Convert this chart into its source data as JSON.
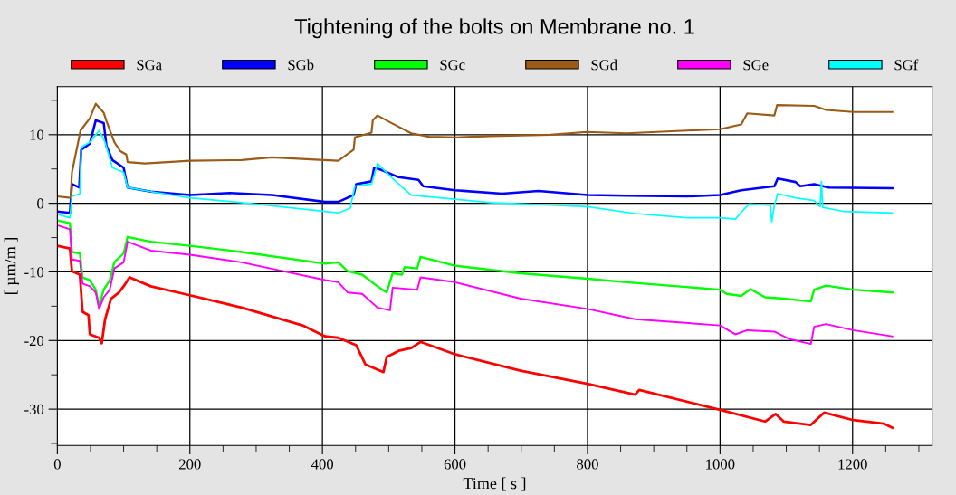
{
  "chart_data": {
    "type": "line",
    "title": "Tightening of the bolts on Membrane no. 1",
    "xlabel": "Time [ s ]",
    "ylabel": "[ µm/m ]",
    "xlim": [
      0,
      1320
    ],
    "ylim": [
      -35.3,
      17
    ],
    "xticks": [
      0,
      {
        "value": 50,
        "label": null
      },
      {
        "value": 100,
        "label": null
      },
      {
        "value": 150,
        "label": null
      },
      200,
      {
        "value": 250,
        "label": null
      },
      {
        "value": 300,
        "label": null
      },
      {
        "value": 350,
        "label": null
      },
      400,
      {
        "value": 450,
        "label": null
      },
      {
        "value": 500,
        "label": null
      },
      {
        "value": 550,
        "label": null
      },
      600,
      {
        "value": 650,
        "label": null
      },
      {
        "value": 700,
        "label": null
      },
      {
        "value": 750,
        "label": null
      },
      800,
      {
        "value": 850,
        "label": null
      },
      {
        "value": 900,
        "label": null
      },
      {
        "value": 950,
        "label": null
      },
      1000,
      {
        "value": 1050,
        "label": null
      },
      {
        "value": 1100,
        "label": null
      },
      {
        "value": 1150,
        "label": null
      },
      1200,
      {
        "value": 1250,
        "label": null
      },
      {
        "value": 1300,
        "label": null
      }
    ],
    "yticks": [
      {
        "value": -35,
        "label": null
      },
      -30,
      {
        "value": -25,
        "label": null
      },
      -20,
      {
        "value": -15,
        "label": null
      },
      -10,
      {
        "value": -5,
        "label": null
      },
      0,
      {
        "value": 5,
        "label": null
      },
      10,
      {
        "value": 15,
        "label": null
      }
    ],
    "grid": true,
    "legend": "top",
    "marker": "none",
    "line_style": "solid",
    "series": [
      {
        "name": "SGa",
        "color": "#ff0000",
        "x": [
          0,
          19,
          22,
          34,
          38,
          47,
          49,
          63,
          67,
          72,
          81,
          93,
          100,
          109,
          141,
          200,
          278,
          370,
          404,
          424,
          451,
          465,
          492,
          497,
          515,
          534,
          548,
          600,
          699,
          800,
          872,
          878,
          1000,
          1068,
          1084,
          1096,
          1137,
          1157,
          1201,
          1247,
          1260
        ],
        "values": [
          -6.2,
          -6.6,
          -9.9,
          -10.4,
          -15.8,
          -16.3,
          -19.1,
          -19.6,
          -20.4,
          -16.9,
          -13.9,
          -13.0,
          -12.1,
          -10.8,
          -12.1,
          -13.4,
          -15.2,
          -17.8,
          -19.4,
          -19.6,
          -20.7,
          -23.5,
          -24.6,
          -22.4,
          -21.5,
          -21.1,
          -20.2,
          -22.0,
          -24.4,
          -26.3,
          -27.9,
          -27.2,
          -30.1,
          -31.8,
          -30.7,
          -31.8,
          -32.3,
          -30.5,
          -31.6,
          -32.1,
          -32.7
        ]
      },
      {
        "name": "SGb",
        "color": "#0000ff",
        "x": [
          0,
          19,
          22,
          33,
          36,
          49,
          58,
          70,
          74,
          83,
          100,
          106,
          141,
          200,
          260,
          324,
          404,
          424,
          447,
          451,
          474,
          478,
          488,
          515,
          545,
          552,
          600,
          671,
          726,
          800,
          859,
          950,
          1000,
          1032,
          1082,
          1087,
          1114,
          1121,
          1142,
          1164,
          1260
        ],
        "values": [
          -1.2,
          -1.4,
          2.8,
          2.3,
          7.8,
          8.7,
          12.1,
          11.7,
          8.4,
          6.3,
          5.2,
          2.3,
          1.7,
          1.2,
          1.5,
          1.2,
          0.2,
          0.2,
          1.2,
          2.8,
          3.2,
          5.2,
          4.9,
          3.8,
          3.4,
          2.5,
          1.9,
          1.4,
          1.8,
          1.2,
          1.1,
          1.0,
          1.2,
          1.9,
          2.5,
          3.6,
          3.1,
          2.5,
          2.8,
          2.3,
          2.2
        ]
      },
      {
        "name": "SGc",
        "color": "#00ff00",
        "x": [
          0,
          19,
          22,
          34,
          38,
          49,
          58,
          63,
          70,
          79,
          86,
          100,
          106,
          141,
          200,
          278,
          404,
          424,
          438,
          460,
          483,
          497,
          506,
          520,
          524,
          543,
          548,
          600,
          699,
          800,
          859,
          1000,
          1010,
          1032,
          1046,
          1068,
          1096,
          1137,
          1142,
          1160,
          1201,
          1260
        ],
        "values": [
          -2.5,
          -2.9,
          -7.1,
          -7.3,
          -10.8,
          -11.2,
          -12.6,
          -15.0,
          -12.6,
          -11.2,
          -8.6,
          -7.3,
          -4.9,
          -5.6,
          -6.2,
          -7.1,
          -8.8,
          -8.6,
          -9.9,
          -10.4,
          -12.1,
          -13.0,
          -10.2,
          -10.4,
          -9.3,
          -9.5,
          -7.8,
          -9.1,
          -10.2,
          -11.0,
          -11.5,
          -12.6,
          -13.2,
          -13.5,
          -12.5,
          -13.7,
          -13.9,
          -14.3,
          -12.6,
          -12.0,
          -12.6,
          -13.0
        ]
      },
      {
        "name": "SGd",
        "color": "#9c5a17",
        "x": [
          0,
          20,
          22,
          35,
          49,
          58,
          70,
          74,
          86,
          95,
          104,
          106,
          132,
          200,
          278,
          324,
          402,
          424,
          447,
          449,
          474,
          476,
          483,
          504,
          534,
          561,
          602,
          653,
          744,
          799,
          859,
          950,
          1000,
          1032,
          1041,
          1082,
          1086,
          1142,
          1160,
          1201,
          1260
        ],
        "values": [
          1.0,
          0.8,
          4.5,
          10.6,
          12.4,
          14.5,
          13.2,
          12.0,
          8.9,
          7.6,
          7.1,
          6.0,
          5.8,
          6.2,
          6.3,
          6.7,
          6.3,
          6.2,
          7.8,
          9.6,
          10.3,
          12.1,
          12.8,
          11.7,
          10.2,
          9.7,
          9.6,
          9.8,
          10.0,
          10.4,
          10.2,
          10.6,
          10.8,
          11.5,
          13.1,
          12.8,
          14.3,
          14.2,
          13.6,
          13.3,
          13.3
        ]
      },
      {
        "name": "SGe",
        "color": "#ff00ff",
        "x": [
          0,
          19,
          22,
          34,
          38,
          49,
          58,
          63,
          70,
          79,
          86,
          100,
          106,
          141,
          200,
          278,
          404,
          424,
          438,
          460,
          483,
          502,
          506,
          543,
          548,
          600,
          699,
          800,
          872,
          1000,
          1023,
          1041,
          1082,
          1105,
          1137,
          1142,
          1160,
          1201,
          1260
        ],
        "values": [
          -3.2,
          -3.8,
          -8.2,
          -8.4,
          -11.7,
          -12.1,
          -13.0,
          -15.4,
          -13.7,
          -12.6,
          -9.5,
          -8.6,
          -5.6,
          -6.9,
          -7.5,
          -8.6,
          -11.2,
          -11.5,
          -13.0,
          -13.2,
          -15.2,
          -15.6,
          -12.3,
          -12.6,
          -10.8,
          -11.5,
          -13.9,
          -15.4,
          -16.9,
          -17.8,
          -19.1,
          -18.5,
          -18.7,
          -19.8,
          -20.5,
          -18.0,
          -17.6,
          -18.5,
          -19.4
        ]
      },
      {
        "name": "SGf",
        "color": "#00ffff",
        "x": [
          0,
          19,
          22,
          34,
          36,
          49,
          63,
          72,
          83,
          100,
          106,
          141,
          200,
          278,
          404,
          424,
          442,
          449,
          474,
          483,
          506,
          534,
          600,
          653,
          800,
          872,
          950,
          1000,
          1023,
          1035,
          1044,
          1076,
          1078,
          1082,
          1087,
          1114,
          1142,
          1151,
          1153,
          1155,
          1187,
          1260
        ],
        "values": [
          -1.6,
          -2.1,
          1.0,
          1.4,
          8.2,
          8.9,
          10.6,
          8.9,
          5.2,
          4.5,
          2.3,
          1.7,
          0.8,
          0.1,
          -1.2,
          -1.4,
          -0.7,
          2.5,
          2.8,
          5.8,
          3.6,
          1.2,
          0.6,
          0.1,
          -0.5,
          -1.5,
          -2.1,
          -2.1,
          -2.3,
          -1.0,
          -0.1,
          -0.3,
          -2.7,
          -0.3,
          1.4,
          0.8,
          0.4,
          -0.5,
          3.2,
          -0.6,
          -1.2,
          -1.4
        ]
      }
    ]
  }
}
